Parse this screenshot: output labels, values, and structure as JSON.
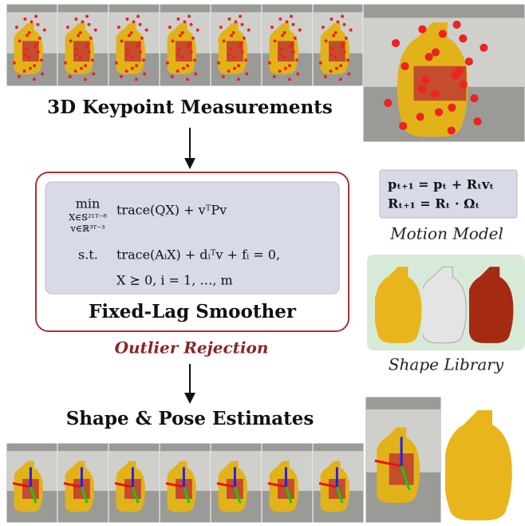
{
  "top": {
    "title": "3D Keypoint Measurements"
  },
  "smoother": {
    "objective_op": "min",
    "objective_sub1": "X∈𝕊²¹ᵀ⁻⁸",
    "objective_sub2": "v∈ℝ³ᵀ⁻³",
    "objective": "trace(QX) + vᵀPv",
    "st": "s.t.",
    "constraint1": "trace(AᵢX) + dᵢᵀv + fᵢ = 0,",
    "constraint2": "X ⪰ 0,   i = 1, …, m",
    "title": "Fixed-Lag Smoother",
    "outlier": "Outlier Rejection"
  },
  "motion": {
    "eq1": "pₜ₊₁ = pₜ + Rₜvₜ",
    "eq2": "Rₜ₊₁ = Rₜ · Ωₜ",
    "title": "Motion Model"
  },
  "library": {
    "title": "Shape Library"
  },
  "bottom": {
    "title": "Shape & Pose Estimates"
  }
}
